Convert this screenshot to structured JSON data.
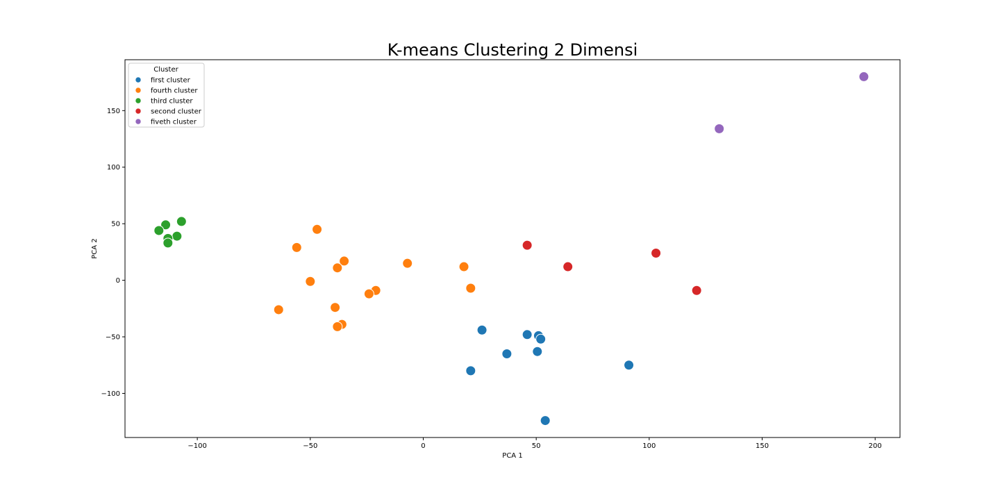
{
  "chart_data": {
    "type": "scatter",
    "title": "K-means Clustering 2 Dimensi",
    "xlabel": "PCA 1",
    "ylabel": "PCA 2",
    "xlim": [
      -132,
      211
    ],
    "ylim": [
      -139,
      195
    ],
    "xticks": [
      -100,
      -50,
      0,
      50,
      100,
      150,
      200
    ],
    "yticks": [
      -100,
      -50,
      0,
      50,
      100,
      150
    ],
    "xtick_labels": [
      "−100",
      "−50",
      "0",
      "50",
      "100",
      "150",
      "200"
    ],
    "ytick_labels": [
      "−100",
      "−50",
      "0",
      "50",
      "100",
      "150"
    ],
    "grid": false,
    "legend": {
      "title": "Cluster",
      "placement": "upper-left"
    },
    "series": [
      {
        "name": "first cluster",
        "color": "#1f77b4",
        "points": [
          [
            26,
            -44
          ],
          [
            46,
            -48
          ],
          [
            51,
            -49
          ],
          [
            52,
            -52
          ],
          [
            37,
            -65
          ],
          [
            50.5,
            -63
          ],
          [
            21,
            -80
          ],
          [
            91,
            -75
          ],
          [
            54,
            -124
          ]
        ]
      },
      {
        "name": "fourth cluster",
        "color": "#ff7f0e",
        "points": [
          [
            -47,
            45
          ],
          [
            -56,
            29
          ],
          [
            -35,
            17
          ],
          [
            -38,
            11
          ],
          [
            -50,
            -1
          ],
          [
            -7,
            15
          ],
          [
            18,
            12
          ],
          [
            21,
            -7
          ],
          [
            -21,
            -9
          ],
          [
            -24,
            -12
          ],
          [
            -39,
            -24
          ],
          [
            -64,
            -26
          ],
          [
            -36,
            -39
          ],
          [
            -38,
            -41
          ]
        ]
      },
      {
        "name": "third cluster",
        "color": "#2ca02c",
        "points": [
          [
            -107,
            52
          ],
          [
            -114,
            49
          ],
          [
            -117,
            44
          ],
          [
            -109,
            39
          ],
          [
            -113,
            37
          ],
          [
            -113,
            33
          ]
        ]
      },
      {
        "name": "second cluster",
        "color": "#d62728",
        "points": [
          [
            46,
            31
          ],
          [
            64,
            12
          ],
          [
            103,
            24
          ],
          [
            121,
            -9
          ]
        ]
      },
      {
        "name": "fiveth cluster",
        "color": "#9467bd",
        "points": [
          [
            131,
            134
          ],
          [
            195,
            180
          ]
        ]
      }
    ]
  }
}
